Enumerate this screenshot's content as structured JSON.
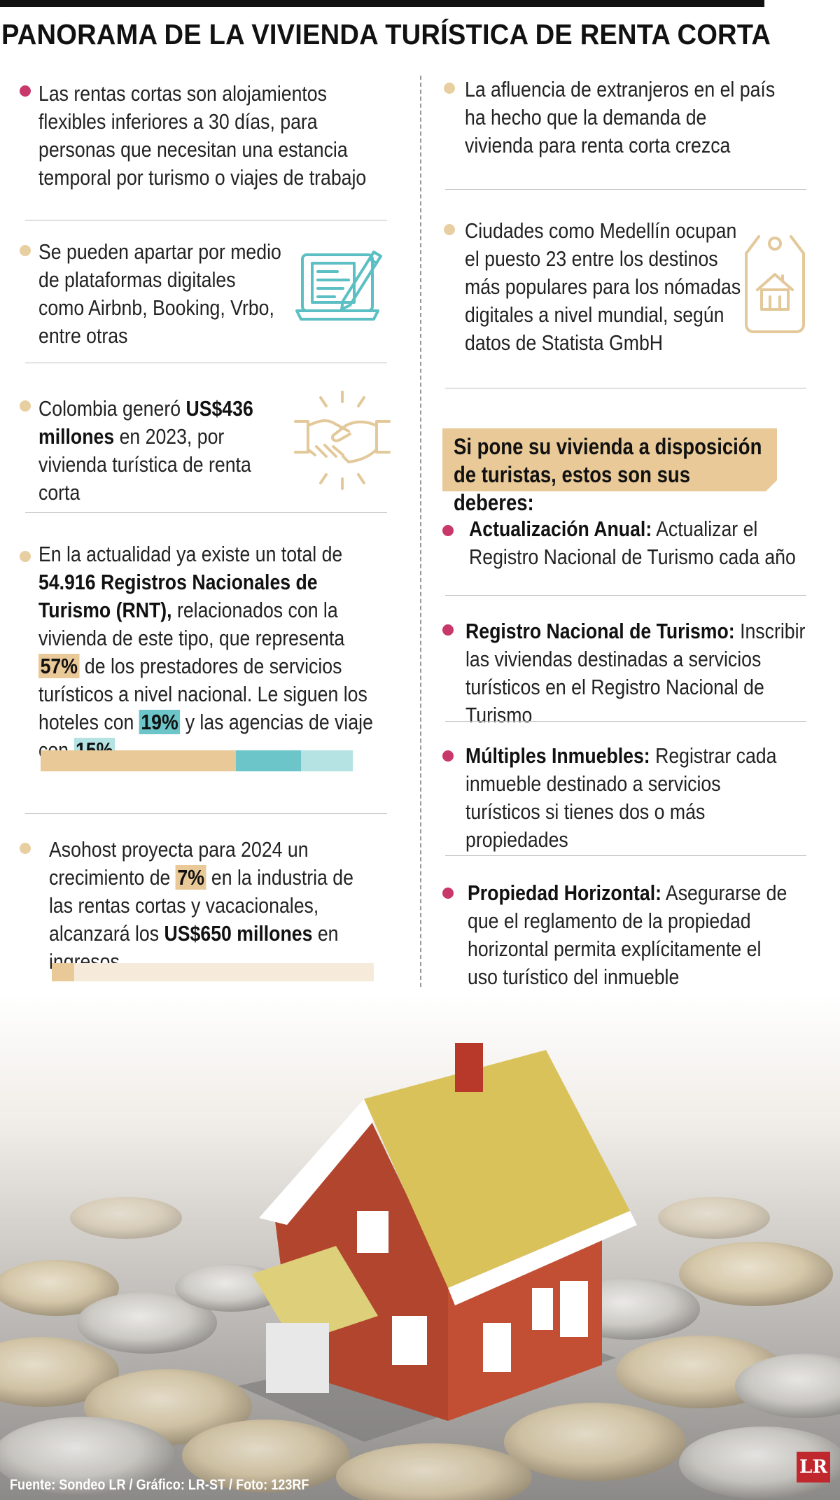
{
  "title": "PANORAMA DE LA VIVIENDA TURÍSTICA DE RENTA CORTA",
  "left_items": {
    "i1": {
      "text": "Las rentas cortas son alojamientos flexibles inferiores a 30 días, para personas que necesitan una estancia temporal por turismo o viajes de trabajo"
    },
    "i2": {
      "text": "Se pueden apartar por medio de plataformas digitales como Airbnb, Booking, Vrbo, entre otras",
      "icon": "laptop-document-pen-icon"
    },
    "i3": {
      "pre": "Colombia generó ",
      "bold": "US$436 millones",
      "post": " en 2023, por vivienda turística de renta corta",
      "icon": "handshake-icon"
    },
    "i4": {
      "pre": "En la actualidad ya existe un total de ",
      "bold": "54.916 Registros Nacionales de Turismo (RNT),",
      "mid": " relacionados con la vivienda de este tipo, que representa ",
      "pct1": "57%",
      "mid2": " de los prestadores de servicios turísticos a nivel nacional. Le siguen los hoteles con ",
      "pct2": "19%",
      "mid3": " y las agencias de viaje con ",
      "pct3": "15%",
      "bar": {
        "values": [
          57,
          19,
          15
        ],
        "colors": [
          "#e9c998",
          "#6cc5c9",
          "#b5e2e3"
        ]
      }
    },
    "i5": {
      "pre": "Asohost proyecta para 2024 un crecimiento de ",
      "pct": "7%",
      "mid": " en la industria de las rentas cortas y vacacionales, alcanzará los ",
      "bold": "US$650 millones",
      "post": " en ingresos",
      "bar": {
        "value": 7,
        "colors": [
          "#e9c998",
          "#f6ebdb"
        ]
      }
    }
  },
  "right_items": {
    "r1": {
      "text": "La afluencia de extranjeros en el país ha hecho que la demanda de vivienda para renta corta crezca"
    },
    "r2": {
      "text": "Ciudades como Medellín ocupan el puesto 23 entre los destinos más populares para los nómadas digitales a nivel mundial, según datos de Statista GmbH",
      "icon": "house-tag-icon"
    }
  },
  "duties": {
    "heading": "Si pone su vivienda a disposición de turistas, estos son sus deberes:",
    "items": [
      {
        "title": "Actualización Anual:",
        "text": " Actualizar el Registro Nacional de Turismo cada año"
      },
      {
        "title": "Registro Nacional de Turismo:",
        "text": " Inscribir las viviendas destinadas a servicios turísticos en el Registro Nacional de Turismo"
      },
      {
        "title": "Múltiples Inmuebles:",
        "text": " Registrar cada inmueble destinado a servicios turísticos si tienes dos o más propiedades"
      },
      {
        "title": "Propiedad Horizontal:",
        "text": " Asegurarse de que el reglamento de la propiedad horizontal permita explícitamente el uso turístico del inmueble"
      }
    ]
  },
  "photo": {
    "icon": "house-on-coins-photo"
  },
  "source": "Fuente: Sondeo LR / Gráfico: LR-ST / Foto: 123RF",
  "logo": "LR",
  "colors": {
    "pink": "#c8386b",
    "tan": "#e9c998",
    "teal": "#6cc5c9",
    "light_teal": "#b5e2e3",
    "red_logo": "#c0282d"
  }
}
